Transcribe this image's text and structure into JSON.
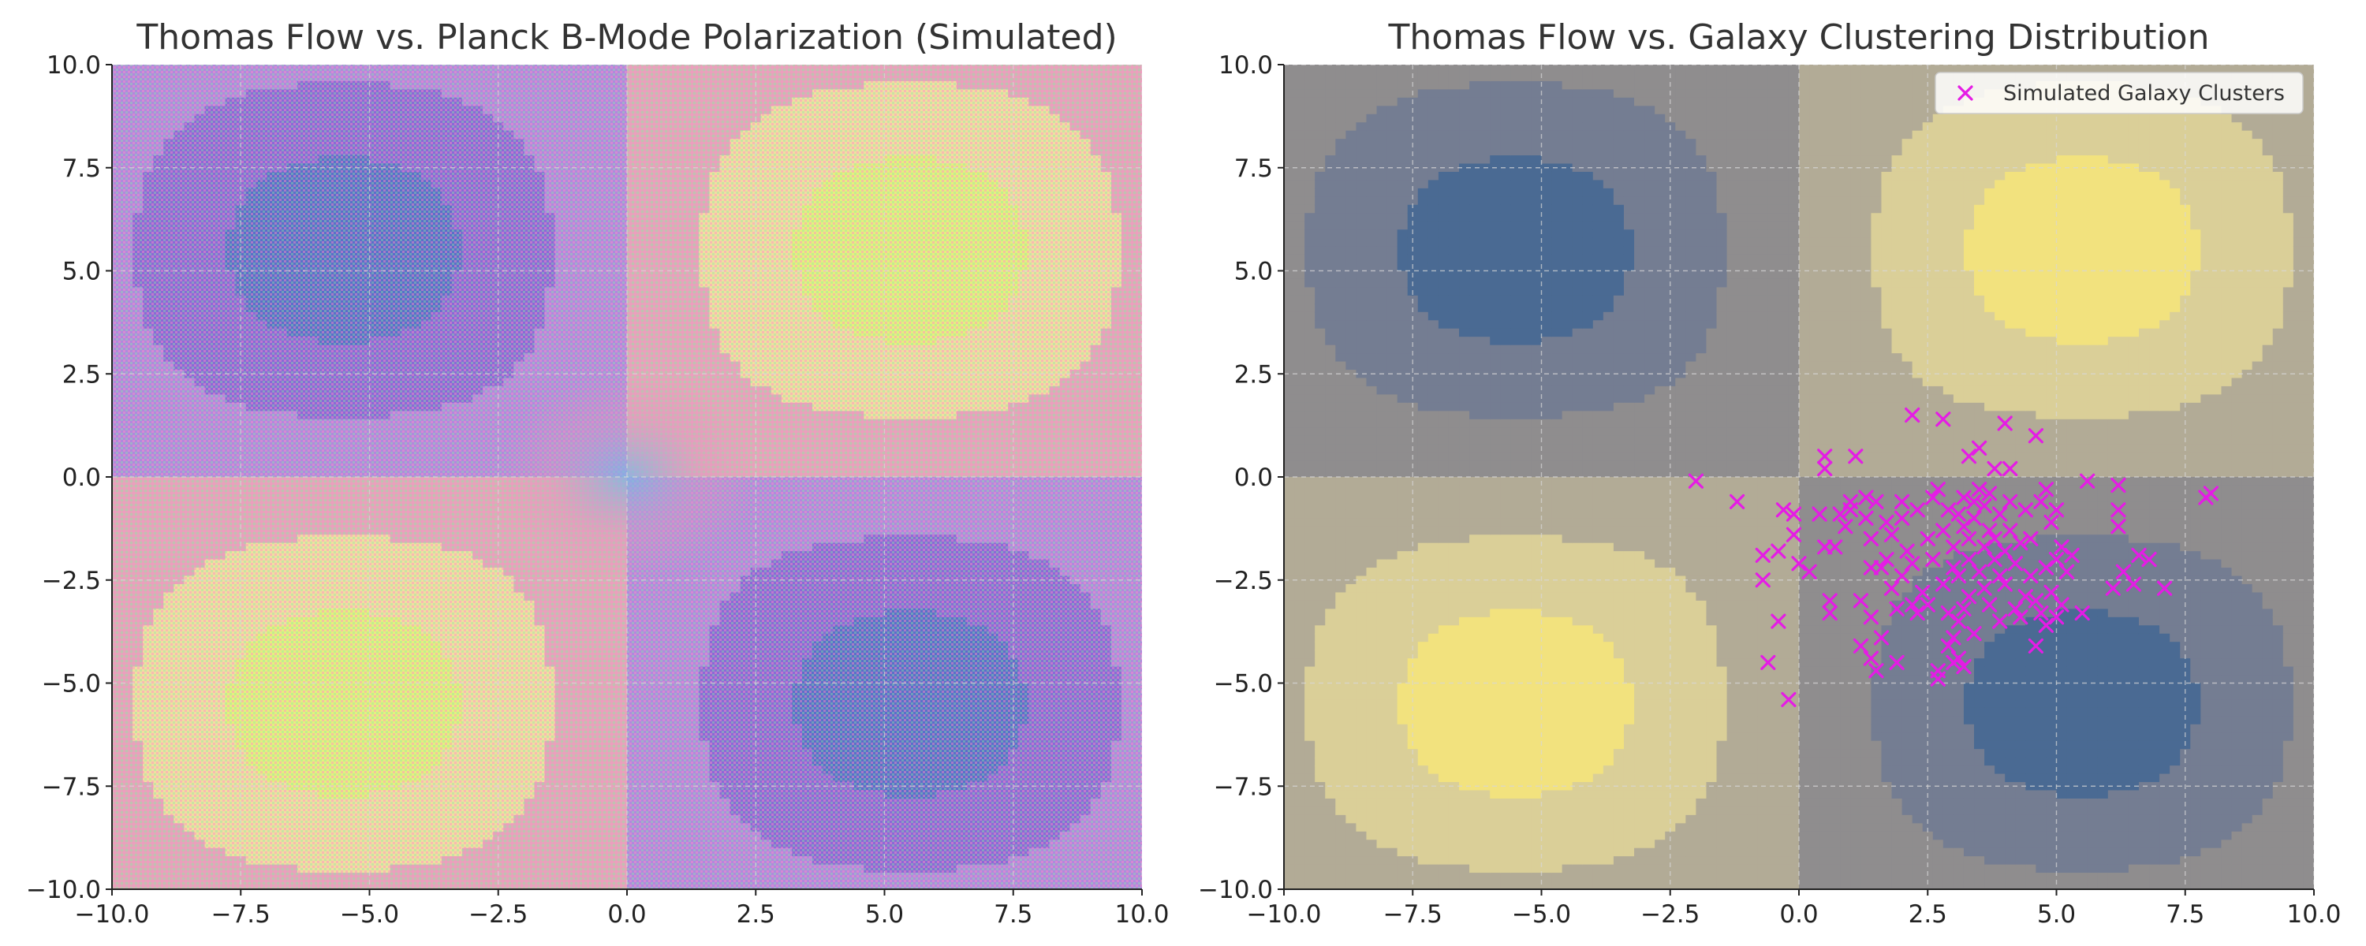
{
  "chart_data": [
    {
      "type": "heatmap",
      "title": "Thomas Flow vs. Planck B-Mode Polarization (Simulated)",
      "xlabel": "",
      "ylabel": "",
      "xlim": [
        -10.0,
        10.0
      ],
      "ylim": [
        -10.0,
        10.0
      ],
      "xticks": [
        "−10.0",
        "−7.5",
        "−5.0",
        "−2.5",
        "0.0",
        "2.5",
        "5.0",
        "7.5",
        "10.0"
      ],
      "yticks": [
        "10.0",
        "7.5",
        "5.0",
        "2.5",
        "0.0",
        "−2.5",
        "−5.0",
        "−7.5",
        "−10.0"
      ],
      "field": "sin(x/3.5)·sin(y/3.5) filled contours",
      "field_levels": [
        -0.8,
        -0.4,
        0,
        0.4,
        0.8
      ],
      "field_colors": [
        "#5b6fc9",
        "#8a6ad6",
        "#b089dd",
        "#e0a8b8",
        "#f0dfa0",
        "#e4f07e"
      ],
      "overlay": "pink/green speckled simulated polarization noise",
      "grid": true
    },
    {
      "type": "scatter",
      "title": "Thomas Flow vs. Galaxy Clustering Distribution",
      "xlabel": "",
      "ylabel": "",
      "xlim": [
        -10.0,
        10.0
      ],
      "ylim": [
        -10.0,
        10.0
      ],
      "xticks": [
        "−10.0",
        "−7.5",
        "−5.0",
        "−2.5",
        "0.0",
        "2.5",
        "5.0",
        "7.5",
        "10.0"
      ],
      "yticks": [
        "10.0",
        "7.5",
        "5.0",
        "2.5",
        "0.0",
        "−2.5",
        "−5.0",
        "−7.5",
        "−10.0"
      ],
      "field_levels": [
        -0.8,
        -0.4,
        0,
        0.4,
        0.8
      ],
      "field_colors": [
        "#4a6a93",
        "#747d92",
        "#8f8d8e",
        "#b2ab96",
        "#dacf98",
        "#f2e27e"
      ],
      "legend_position": "top-right",
      "grid": true,
      "series": [
        {
          "name": "Simulated Galaxy Clusters",
          "marker": "x",
          "color": "#e51ce5",
          "points": [
            [
              -2.0,
              -0.1
            ],
            [
              -1.2,
              -0.6
            ],
            [
              -0.7,
              -1.9
            ],
            [
              -0.7,
              -2.5
            ],
            [
              -0.6,
              -4.5
            ],
            [
              -0.4,
              -1.8
            ],
            [
              -0.4,
              -3.5
            ],
            [
              -0.3,
              -0.8
            ],
            [
              -0.2,
              -5.4
            ],
            [
              -0.1,
              -1.4
            ],
            [
              -0.1,
              -0.9
            ],
            [
              0.0,
              -2.1
            ],
            [
              0.2,
              -2.3
            ],
            [
              0.4,
              -0.9
            ],
            [
              0.5,
              0.5
            ],
            [
              0.5,
              0.2
            ],
            [
              0.5,
              -1.7
            ],
            [
              0.6,
              -3.0
            ],
            [
              0.6,
              -3.3
            ],
            [
              0.7,
              -1.7
            ],
            [
              0.8,
              -0.9
            ],
            [
              0.9,
              -1.2
            ],
            [
              1.0,
              -0.8
            ],
            [
              1.0,
              -0.6
            ],
            [
              1.1,
              0.5
            ],
            [
              1.2,
              -3.0
            ],
            [
              1.2,
              -4.1
            ],
            [
              1.3,
              -1.0
            ],
            [
              1.3,
              -0.5
            ],
            [
              1.4,
              -1.5
            ],
            [
              1.4,
              -2.2
            ],
            [
              1.4,
              -3.4
            ],
            [
              1.4,
              -4.4
            ],
            [
              1.5,
              -0.6
            ],
            [
              1.5,
              -4.7
            ],
            [
              1.6,
              -2.2
            ],
            [
              1.6,
              -3.9
            ],
            [
              1.7,
              -2.0
            ],
            [
              1.7,
              -1.1
            ],
            [
              1.8,
              -1.4
            ],
            [
              1.8,
              -2.7
            ],
            [
              1.9,
              -3.2
            ],
            [
              1.9,
              -4.5
            ],
            [
              2.0,
              -2.4
            ],
            [
              2.0,
              -1.0
            ],
            [
              2.0,
              -0.6
            ],
            [
              2.1,
              -1.8
            ],
            [
              2.2,
              -3.1
            ],
            [
              2.2,
              -2.1
            ],
            [
              2.2,
              1.5
            ],
            [
              2.3,
              -0.8
            ],
            [
              2.3,
              -3.3
            ],
            [
              2.4,
              -2.8
            ],
            [
              2.5,
              -1.5
            ],
            [
              2.5,
              -3.1
            ],
            [
              2.6,
              -0.5
            ],
            [
              2.6,
              -2.0
            ],
            [
              2.7,
              -4.9
            ],
            [
              2.7,
              -4.7
            ],
            [
              2.7,
              -0.3
            ],
            [
              2.8,
              -1.3
            ],
            [
              2.8,
              1.4
            ],
            [
              2.8,
              -2.6
            ],
            [
              2.9,
              -3.3
            ],
            [
              2.9,
              -4.1
            ],
            [
              2.9,
              -0.8
            ],
            [
              3.0,
              -1.7
            ],
            [
              3.0,
              -2.2
            ],
            [
              3.0,
              -3.9
            ],
            [
              3.0,
              -4.5
            ],
            [
              3.1,
              -0.9
            ],
            [
              3.1,
              -2.4
            ],
            [
              3.1,
              -3.5
            ],
            [
              3.1,
              -4.4
            ],
            [
              3.2,
              -1.2
            ],
            [
              3.2,
              -0.5
            ],
            [
              3.2,
              -3.2
            ],
            [
              3.2,
              -4.6
            ],
            [
              3.3,
              -2.0
            ],
            [
              3.3,
              -1.5
            ],
            [
              3.3,
              -2.9
            ],
            [
              3.3,
              0.5
            ],
            [
              3.4,
              -0.6
            ],
            [
              3.4,
              -3.8
            ],
            [
              3.4,
              -1.0
            ],
            [
              3.5,
              -2.3
            ],
            [
              3.5,
              -0.3
            ],
            [
              3.5,
              0.7
            ],
            [
              3.6,
              -1.7
            ],
            [
              3.6,
              -2.7
            ],
            [
              3.6,
              -0.7
            ],
            [
              3.7,
              -3.1
            ],
            [
              3.7,
              -1.3
            ],
            [
              3.7,
              -0.4
            ],
            [
              3.8,
              -2.0
            ],
            [
              3.8,
              -1.5
            ],
            [
              3.8,
              0.2
            ],
            [
              3.9,
              -2.4
            ],
            [
              3.9,
              -0.9
            ],
            [
              3.9,
              -3.5
            ],
            [
              4.0,
              -2.6
            ],
            [
              4.0,
              -1.8
            ],
            [
              4.0,
              1.3
            ],
            [
              4.1,
              -0.6
            ],
            [
              4.1,
              -1.3
            ],
            [
              4.1,
              0.2
            ],
            [
              4.2,
              -3.2
            ],
            [
              4.2,
              -2.1
            ],
            [
              4.3,
              -3.4
            ],
            [
              4.3,
              -1.6
            ],
            [
              4.4,
              -0.8
            ],
            [
              4.4,
              -2.9
            ],
            [
              4.5,
              -1.5
            ],
            [
              4.5,
              -2.4
            ],
            [
              4.6,
              -4.1
            ],
            [
              4.6,
              -3.0
            ],
            [
              4.6,
              1.0
            ],
            [
              4.7,
              -3.3
            ],
            [
              4.7,
              -0.6
            ],
            [
              4.8,
              -2.2
            ],
            [
              4.8,
              -3.6
            ],
            [
              4.8,
              -0.3
            ],
            [
              4.9,
              -1.1
            ],
            [
              4.9,
              -2.8
            ],
            [
              5.0,
              -3.4
            ],
            [
              5.0,
              -2.0
            ],
            [
              5.0,
              -0.8
            ],
            [
              5.1,
              -3.1
            ],
            [
              5.1,
              -1.7
            ],
            [
              5.2,
              -2.3
            ],
            [
              5.3,
              -1.9
            ],
            [
              5.5,
              -3.3
            ],
            [
              5.6,
              -0.1
            ],
            [
              6.1,
              -2.7
            ],
            [
              6.2,
              -1.2
            ],
            [
              6.2,
              -0.8
            ],
            [
              6.2,
              -0.2
            ],
            [
              6.3,
              -2.3
            ],
            [
              6.5,
              -2.6
            ],
            [
              6.6,
              -1.9
            ],
            [
              6.8,
              -2.0
            ],
            [
              7.1,
              -2.7
            ],
            [
              7.9,
              -0.5
            ],
            [
              8.0,
              -0.4
            ]
          ]
        }
      ]
    }
  ]
}
